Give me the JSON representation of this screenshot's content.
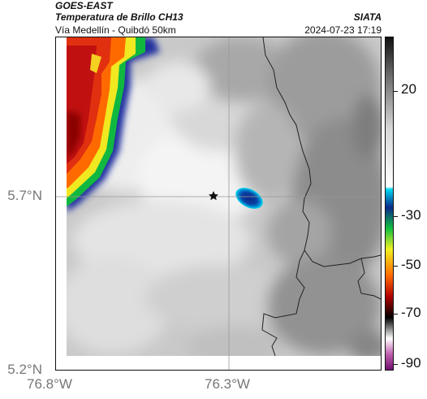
{
  "header": {
    "satellite": "GOES-EAST",
    "product": "Temperatura de Brillo CH13",
    "route": "Vía Medellín - Quibdó 50km",
    "brand": "SIATA",
    "datetime": "2024-07-23 17:19"
  },
  "axes": {
    "y_ticks": [
      {
        "label": "5.7°N",
        "value": 5.7
      },
      {
        "label": "5.2°N",
        "value": 5.2
      }
    ],
    "x_ticks": [
      {
        "label": "76.8°W",
        "value": -76.8
      },
      {
        "label": "76.3°W",
        "value": -76.3
      }
    ]
  },
  "colorbar": {
    "labels": [
      "20",
      "-30",
      "-50",
      "-70",
      "-90"
    ],
    "stops": [
      {
        "value": 35,
        "color": "#111111"
      },
      {
        "value": 20,
        "color": "#6e6e6e"
      },
      {
        "value": 0,
        "color": "#d8d8d8"
      },
      {
        "value": -22,
        "color": "#ffffff"
      },
      {
        "value": -23,
        "color": "#00d8f0"
      },
      {
        "value": -30,
        "color": "#0a2a8a"
      },
      {
        "value": -38,
        "color": "#10c040"
      },
      {
        "value": -46,
        "color": "#f0f020"
      },
      {
        "value": -56,
        "color": "#ff6a00"
      },
      {
        "value": -64,
        "color": "#b00000"
      },
      {
        "value": -72,
        "color": "#000000"
      },
      {
        "value": -80,
        "color": "#ffffff"
      },
      {
        "value": -86,
        "color": "#c060b0"
      },
      {
        "value": -92,
        "color": "#701070"
      }
    ]
  },
  "map": {
    "marker": "star-icon",
    "colors": {
      "background_light": "#e6e6e6",
      "background_dark": "#8a8a8a",
      "border": "#111111",
      "gridline": "#9a9a9a"
    }
  }
}
